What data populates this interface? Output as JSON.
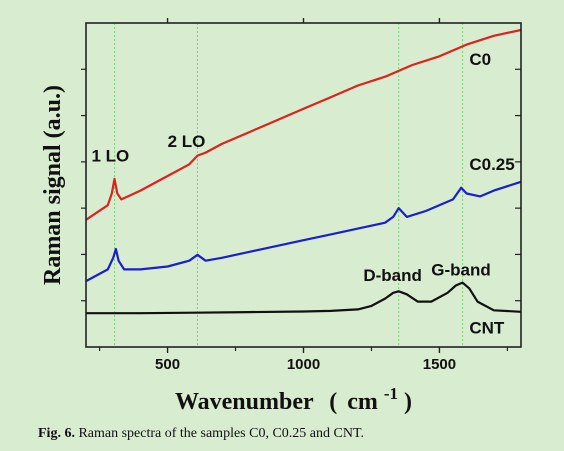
{
  "chart_data": {
    "type": "line",
    "title": "",
    "xlabel": "Wavenumber",
    "xlabel_unit_open": "(",
    "xlabel_unit_base": "cm",
    "xlabel_unit_exp": "-1",
    "xlabel_unit_close": ")",
    "ylabel": "Raman signal (a.u.)",
    "xlim": [
      200,
      1800
    ],
    "ylim": [
      0,
      1
    ],
    "x_ticks": [
      500,
      1000,
      1500
    ],
    "y_tick_labels": false,
    "grid": false,
    "reference_lines_x": [
      305,
      610,
      1350,
      1585
    ],
    "series": [
      {
        "name": "C0",
        "color": "#e0201c",
        "x": [
          200,
          280,
          295,
          305,
          315,
          330,
          400,
          500,
          580,
          610,
          640,
          700,
          800,
          900,
          1000,
          1100,
          1200,
          1300,
          1400,
          1500,
          1600,
          1700,
          1800
        ],
        "y": [
          0.35,
          0.4,
          0.44,
          0.49,
          0.44,
          0.42,
          0.45,
          0.5,
          0.54,
          0.57,
          0.58,
          0.61,
          0.65,
          0.69,
          0.73,
          0.77,
          0.81,
          0.84,
          0.88,
          0.91,
          0.95,
          0.98,
          1.0
        ]
      },
      {
        "name": "C0.25",
        "color": "#1a1ed0",
        "x": [
          200,
          280,
          300,
          310,
          320,
          340,
          400,
          500,
          580,
          610,
          640,
          700,
          800,
          900,
          1000,
          1100,
          1200,
          1300,
          1330,
          1350,
          1380,
          1450,
          1550,
          1580,
          1600,
          1650,
          1700,
          1800
        ],
        "y": [
          0.14,
          0.18,
          0.22,
          0.25,
          0.21,
          0.18,
          0.18,
          0.19,
          0.21,
          0.23,
          0.21,
          0.22,
          0.24,
          0.26,
          0.28,
          0.3,
          0.32,
          0.34,
          0.36,
          0.39,
          0.36,
          0.38,
          0.42,
          0.46,
          0.44,
          0.43,
          0.45,
          0.48
        ]
      },
      {
        "name": "CNT",
        "color": "#111111",
        "x": [
          200,
          400,
          600,
          800,
          1000,
          1100,
          1200,
          1250,
          1300,
          1330,
          1350,
          1380,
          1420,
          1470,
          1530,
          1560,
          1585,
          1610,
          1640,
          1700,
          1800
        ],
        "y": [
          0.03,
          0.03,
          0.032,
          0.034,
          0.036,
          0.038,
          0.043,
          0.055,
          0.08,
          0.1,
          0.105,
          0.095,
          0.07,
          0.07,
          0.1,
          0.125,
          0.135,
          0.115,
          0.07,
          0.04,
          0.035
        ]
      }
    ],
    "annotations": [
      {
        "text": "C0",
        "x": 1610,
        "y": 0.88,
        "anchor": "start"
      },
      {
        "text": "C0.25",
        "x": 1610,
        "y": 0.52,
        "anchor": "start"
      },
      {
        "text": "CNT",
        "x": 1610,
        "y": -0.04,
        "anchor": "start"
      },
      {
        "text": "1 LO",
        "x": 220,
        "y": 0.55,
        "anchor": "start"
      },
      {
        "text": "2 LO",
        "x": 500,
        "y": 0.6,
        "anchor": "start"
      },
      {
        "text": "D-band",
        "x": 1220,
        "y": 0.14,
        "anchor": "start"
      },
      {
        "text": "G-band",
        "x": 1470,
        "y": 0.16,
        "anchor": "start"
      }
    ]
  },
  "caption": {
    "label": "Fig. 6.",
    "text": " Raman spectra of the samples C0, C0.25 and CNT."
  }
}
